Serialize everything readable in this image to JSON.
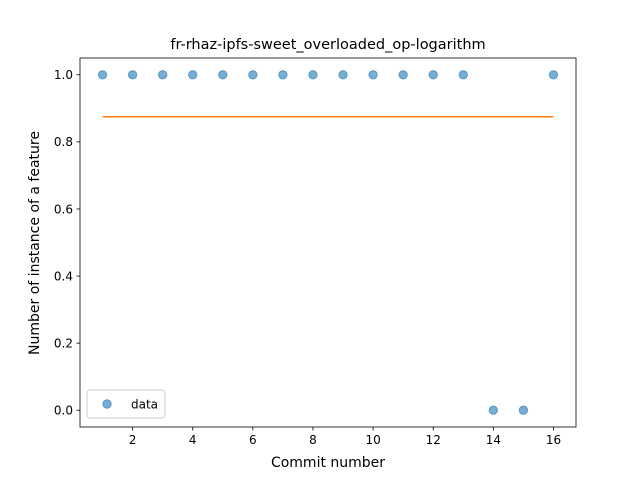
{
  "chart_data": {
    "type": "scatter",
    "title": "fr-rhaz-ipfs-sweet_overloaded_op-logarithm",
    "xlabel": "Commit number",
    "ylabel": "Number of instance of a feature",
    "xlim": [
      0.25,
      16.75
    ],
    "ylim": [
      -0.05,
      1.05
    ],
    "x_ticks": [
      2,
      4,
      6,
      8,
      10,
      12,
      14,
      16
    ],
    "y_ticks": [
      0.0,
      0.2,
      0.4,
      0.6,
      0.8,
      1.0
    ],
    "x_tick_labels": [
      "2",
      "4",
      "6",
      "8",
      "10",
      "12",
      "14",
      "16"
    ],
    "y_tick_labels": [
      "0.0",
      "0.2",
      "0.4",
      "0.6",
      "0.8",
      "1.0"
    ],
    "grid": false,
    "legend": {
      "location": "lower left",
      "entries": [
        "data"
      ]
    },
    "series": [
      {
        "name": "data",
        "kind": "scatter",
        "color": "#1f77b4",
        "x": [
          1,
          2,
          3,
          4,
          5,
          6,
          7,
          8,
          9,
          10,
          11,
          12,
          13,
          14,
          15,
          16
        ],
        "y": [
          1,
          1,
          1,
          1,
          1,
          1,
          1,
          1,
          1,
          1,
          1,
          1,
          1,
          0,
          0,
          1
        ]
      },
      {
        "kind": "line",
        "color": "#ff7f0e",
        "x": [
          1,
          16
        ],
        "y": [
          0.875,
          0.875
        ]
      }
    ]
  }
}
